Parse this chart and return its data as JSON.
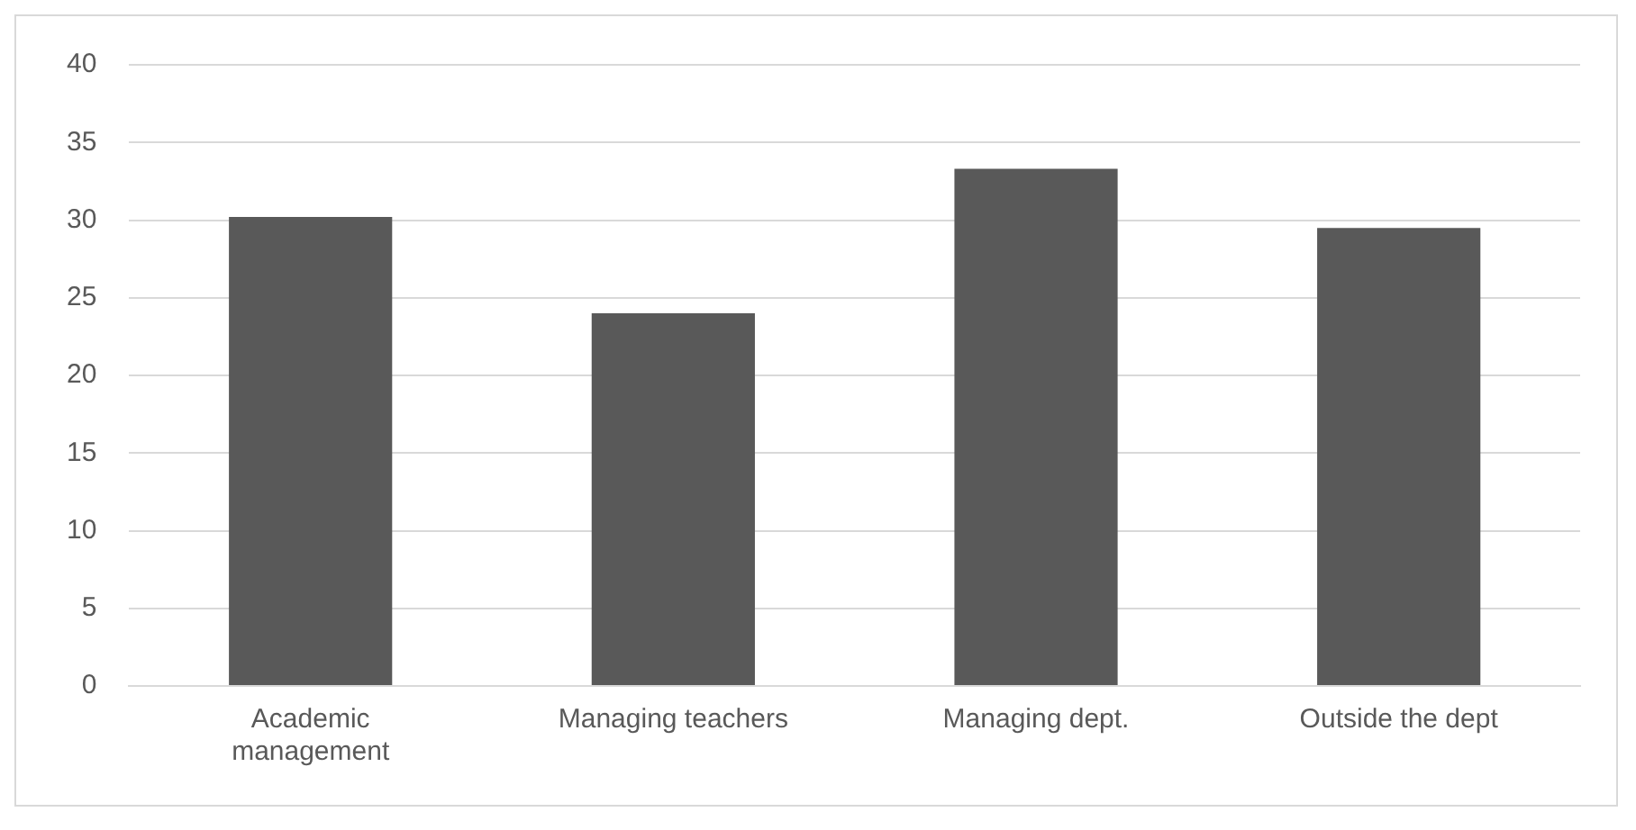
{
  "chart_data": {
    "type": "bar",
    "categories": [
      "Academic management",
      "Managing teachers",
      "Managing dept.",
      "Outside the dept"
    ],
    "values": [
      30.2,
      24.0,
      33.3,
      29.5
    ],
    "color": "#595959",
    "ylim": [
      0,
      40
    ],
    "yticks": [
      0,
      5,
      10,
      15,
      20,
      25,
      30,
      35,
      40
    ],
    "grid": "y"
  }
}
